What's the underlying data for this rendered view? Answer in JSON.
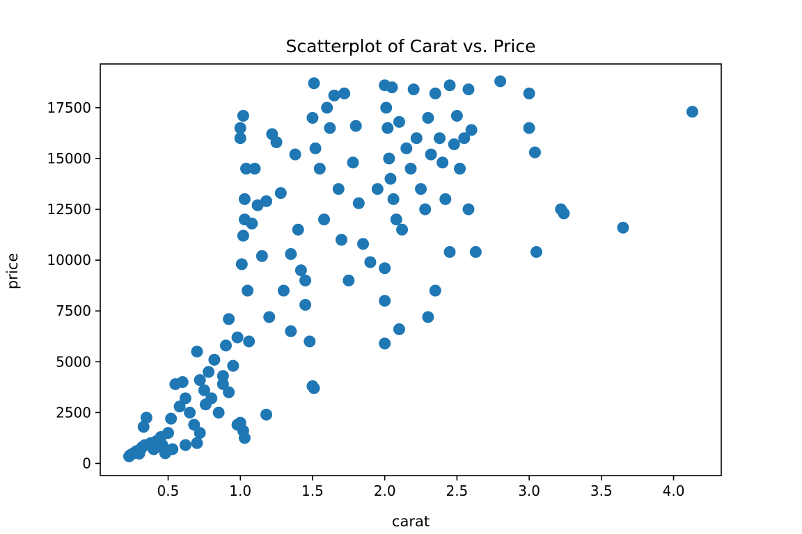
{
  "chart_data": {
    "type": "scatter",
    "title": "Scatterplot of Carat vs. Price",
    "xlabel": "carat",
    "ylabel": "price",
    "xlim": [
      0.03,
      4.33
    ],
    "ylim": [
      -600,
      19650
    ],
    "xticks": [
      0.5,
      1.0,
      1.5,
      2.0,
      2.5,
      3.0,
      3.5,
      4.0
    ],
    "xtick_labels": [
      "0.5",
      "1.0",
      "1.5",
      "2.0",
      "2.5",
      "3.0",
      "3.5",
      "4.0"
    ],
    "yticks": [
      0,
      2500,
      5000,
      7500,
      10000,
      12500,
      15000,
      17500
    ],
    "ytick_labels": [
      "0",
      "2500",
      "5000",
      "7500",
      "10000",
      "12500",
      "15000",
      "17500"
    ],
    "grid": false,
    "color": "#1f77b4",
    "series": [
      {
        "points": [
          [
            0.23,
            350
          ],
          [
            0.24,
            420
          ],
          [
            0.26,
            500
          ],
          [
            0.28,
            600
          ],
          [
            0.3,
            480
          ],
          [
            0.31,
            700
          ],
          [
            0.32,
            800
          ],
          [
            0.34,
            900
          ],
          [
            0.35,
            2250
          ],
          [
            0.33,
            1800
          ],
          [
            0.38,
            1000
          ],
          [
            0.4,
            700
          ],
          [
            0.42,
            1100
          ],
          [
            0.45,
            1300
          ],
          [
            0.46,
            900
          ],
          [
            0.5,
            1500
          ],
          [
            0.52,
            2200
          ],
          [
            0.55,
            3900
          ],
          [
            0.58,
            2800
          ],
          [
            0.6,
            4000
          ],
          [
            0.62,
            3200
          ],
          [
            0.65,
            2500
          ],
          [
            0.68,
            1900
          ],
          [
            0.7,
            5500
          ],
          [
            0.72,
            4100
          ],
          [
            0.75,
            3600
          ],
          [
            0.76,
            2900
          ],
          [
            0.78,
            4500
          ],
          [
            0.8,
            3200
          ],
          [
            0.82,
            5100
          ],
          [
            0.85,
            2500
          ],
          [
            0.88,
            3900
          ],
          [
            0.9,
            5800
          ],
          [
            0.92,
            7100
          ],
          [
            0.95,
            4800
          ],
          [
            0.98,
            6200
          ],
          [
            1.0,
            2000
          ],
          [
            1.01,
            9800
          ],
          [
            1.02,
            11200
          ],
          [
            1.03,
            13000
          ],
          [
            1.04,
            14500
          ],
          [
            1.05,
            8500
          ],
          [
            1.06,
            6000
          ],
          [
            1.08,
            11800
          ],
          [
            1.1,
            14500
          ],
          [
            1.12,
            12700
          ],
          [
            1.15,
            10200
          ],
          [
            1.18,
            12900
          ],
          [
            1.2,
            7200
          ],
          [
            1.22,
            16200
          ],
          [
            1.25,
            15800
          ],
          [
            1.28,
            13300
          ],
          [
            1.3,
            8500
          ],
          [
            1.35,
            6500
          ],
          [
            1.38,
            15200
          ],
          [
            1.4,
            11500
          ],
          [
            1.42,
            9500
          ],
          [
            1.45,
            7800
          ],
          [
            1.48,
            6000
          ],
          [
            1.5,
            17000
          ],
          [
            1.51,
            18700
          ],
          [
            1.52,
            15500
          ],
          [
            1.55,
            14500
          ],
          [
            1.58,
            12000
          ],
          [
            1.6,
            17500
          ],
          [
            1.62,
            16500
          ],
          [
            1.65,
            18100
          ],
          [
            1.68,
            13500
          ],
          [
            1.7,
            11000
          ],
          [
            1.72,
            18200
          ],
          [
            1.75,
            9000
          ],
          [
            1.78,
            14800
          ],
          [
            1.8,
            16600
          ],
          [
            1.82,
            12800
          ],
          [
            1.85,
            10800
          ],
          [
            1.9,
            9900
          ],
          [
            1.95,
            13500
          ],
          [
            2.0,
            18600
          ],
          [
            2.01,
            17500
          ],
          [
            2.02,
            16500
          ],
          [
            2.03,
            15000
          ],
          [
            2.04,
            14000
          ],
          [
            2.05,
            18500
          ],
          [
            2.06,
            13000
          ],
          [
            2.08,
            12000
          ],
          [
            2.1,
            16800
          ],
          [
            2.12,
            11500
          ],
          [
            2.15,
            15500
          ],
          [
            2.18,
            14500
          ],
          [
            2.2,
            18400
          ],
          [
            2.22,
            16000
          ],
          [
            2.25,
            13500
          ],
          [
            2.28,
            12500
          ],
          [
            2.3,
            17000
          ],
          [
            2.32,
            15200
          ],
          [
            2.35,
            18200
          ],
          [
            2.38,
            16000
          ],
          [
            2.4,
            14800
          ],
          [
            2.42,
            13000
          ],
          [
            2.45,
            18600
          ],
          [
            2.48,
            15700
          ],
          [
            2.5,
            17100
          ],
          [
            2.52,
            14500
          ],
          [
            2.55,
            16000
          ],
          [
            2.58,
            18400
          ],
          [
            2.6,
            16400
          ],
          [
            2.63,
            10400
          ],
          [
            2.0,
            9600
          ],
          [
            2.0,
            8000
          ],
          [
            2.0,
            5900
          ],
          [
            2.1,
            6600
          ],
          [
            2.3,
            7200
          ],
          [
            2.35,
            8500
          ],
          [
            2.45,
            10400
          ],
          [
            2.58,
            12500
          ],
          [
            2.8,
            18800
          ],
          [
            3.0,
            18200
          ],
          [
            3.0,
            16500
          ],
          [
            3.04,
            15300
          ],
          [
            3.05,
            10400
          ],
          [
            3.22,
            12500
          ],
          [
            3.24,
            12300
          ],
          [
            3.65,
            11600
          ],
          [
            4.13,
            17300
          ],
          [
            1.5,
            3800
          ],
          [
            1.51,
            3700
          ],
          [
            1.18,
            2400
          ],
          [
            1.03,
            1250
          ],
          [
            1.02,
            1600
          ],
          [
            0.98,
            1900
          ],
          [
            0.92,
            3500
          ],
          [
            0.88,
            4300
          ],
          [
            0.7,
            1000
          ],
          [
            0.72,
            1500
          ],
          [
            0.62,
            900
          ],
          [
            0.53,
            700
          ],
          [
            0.48,
            500
          ],
          [
            0.42,
            800
          ],
          [
            1.0,
            16500
          ],
          [
            1.0,
            16000
          ],
          [
            1.02,
            17100
          ],
          [
            1.03,
            12000
          ],
          [
            1.35,
            10300
          ],
          [
            1.45,
            9000
          ]
        ]
      }
    ]
  }
}
